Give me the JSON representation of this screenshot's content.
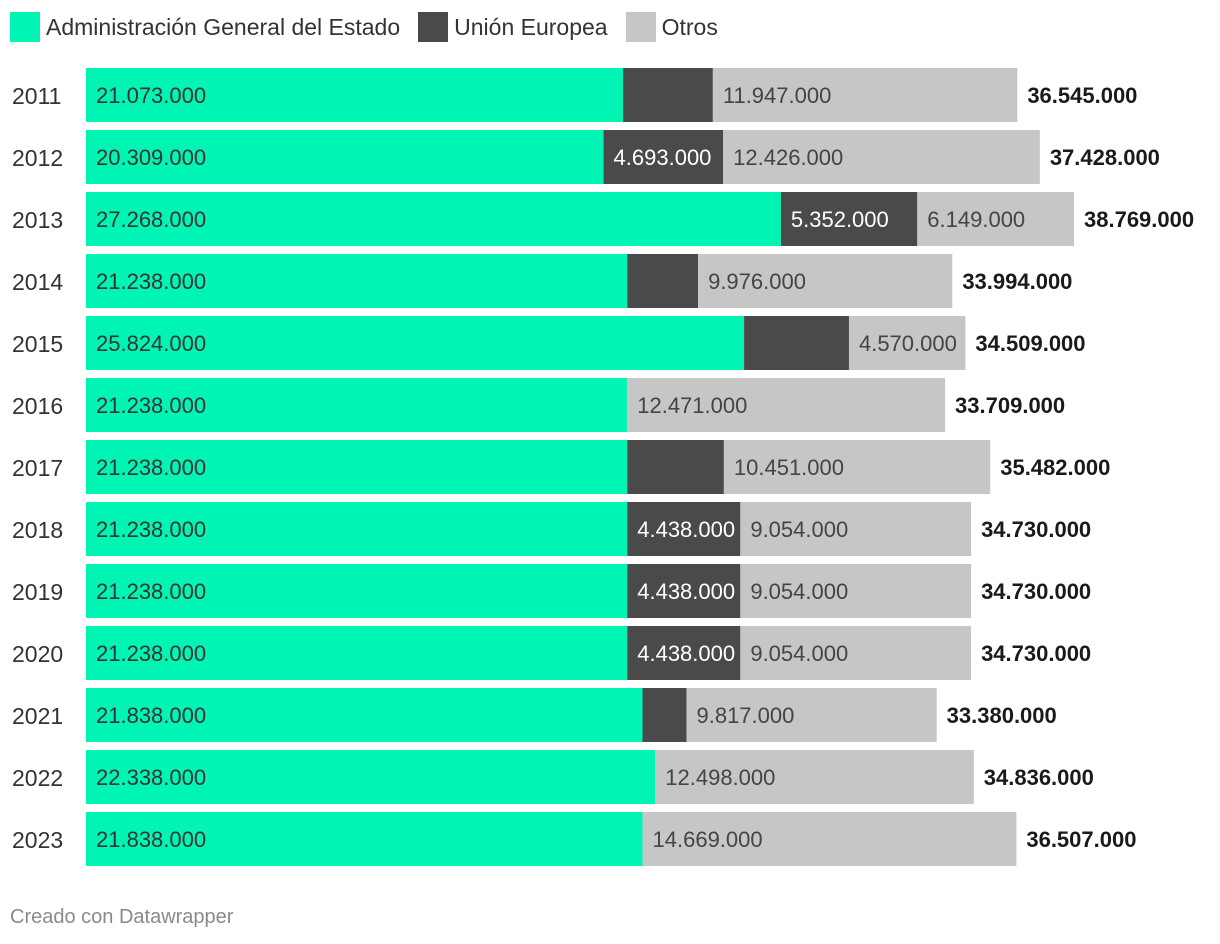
{
  "chart_data": {
    "type": "bar",
    "orientation": "horizontal",
    "stacked": true,
    "categories": [
      "2011",
      "2012",
      "2013",
      "2014",
      "2015",
      "2016",
      "2017",
      "2018",
      "2019",
      "2020",
      "2021",
      "2022",
      "2023"
    ],
    "series": [
      {
        "name": "Administración General del Estado",
        "color": "#00f5b5",
        "values": [
          21073000,
          20309000,
          27268000,
          21238000,
          25824000,
          21238000,
          21238000,
          21238000,
          21238000,
          21238000,
          21838000,
          22338000,
          21838000
        ],
        "labels": [
          "21.073.000",
          "20.309.000",
          "27.268.000",
          "21.238.000",
          "25.824.000",
          "21.238.000",
          "21.238.000",
          "21.238.000",
          "21.238.000",
          "21.238.000",
          "21.838.000",
          "22.338.000",
          "21.838.000"
        ]
      },
      {
        "name": "Unión Europea",
        "color": "#4a4a4a",
        "values": [
          3525000,
          4693000,
          5352000,
          2780000,
          4115000,
          0,
          3793000,
          4438000,
          4438000,
          4438000,
          1725000,
          0,
          0
        ],
        "labels": [
          "",
          "4.693.000",
          "5.352.000",
          "",
          "",
          "",
          "",
          "4.438.000",
          "4.438.000",
          "4.438.000",
          "",
          "",
          ""
        ]
      },
      {
        "name": "Otros",
        "color": "#c6c6c6",
        "values": [
          11947000,
          12426000,
          6149000,
          9976000,
          4570000,
          12471000,
          10451000,
          9054000,
          9054000,
          9054000,
          9817000,
          12498000,
          14669000
        ],
        "labels": [
          "11.947.000",
          "12.426.000",
          "6.149.000",
          "9.976.000",
          "4.570.000",
          "12.471.000",
          "10.451.000",
          "9.054.000",
          "9.054.000",
          "9.054.000",
          "9.817.000",
          "12.498.000",
          "14.669.000"
        ]
      }
    ],
    "totals": [
      36545000,
      37428000,
      38769000,
      33994000,
      34509000,
      33709000,
      35482000,
      34730000,
      34730000,
      34730000,
      33380000,
      34836000,
      36507000
    ],
    "total_labels": [
      "36.545.000",
      "37.428.000",
      "38.769.000",
      "33.994.000",
      "34.509.000",
      "33.709.000",
      "35.482.000",
      "34.730.000",
      "34.730.000",
      "34.730.000",
      "33.380.000",
      "34.836.000",
      "36.507.000"
    ],
    "legend": [
      "Administración General del Estado",
      "Unión Europea",
      "Otros"
    ],
    "xlim": [
      0,
      38769000
    ],
    "grid": false,
    "legend_position": "top-left"
  },
  "footer": "Creado con Datawrapper"
}
